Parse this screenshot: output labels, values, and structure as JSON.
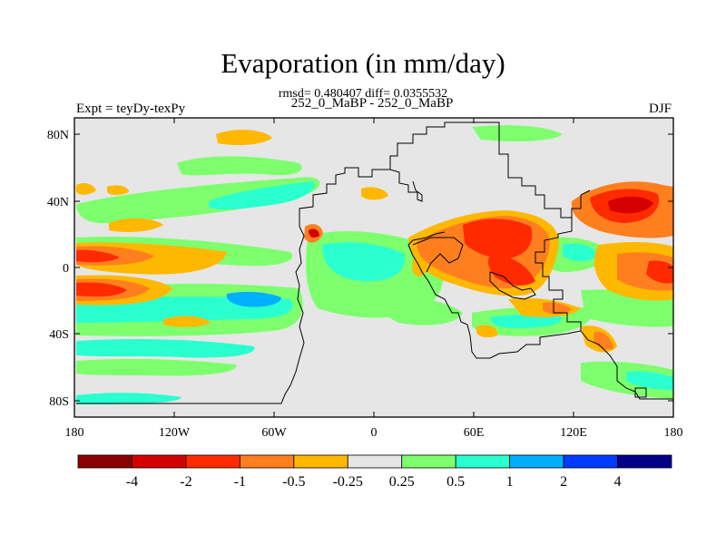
{
  "title": "Evaporation (in mm/day)",
  "stats_line": "rmsd= 0.480407 diff= 0.0355532",
  "subtitle": "252_0_MaBP - 252_0_MaBP",
  "left_label": "Expt = teyDy-texPy",
  "right_label": "DJF",
  "map": {
    "x_ticks": [
      "180",
      "120W",
      "60W",
      "0",
      "60E",
      "120E",
      "180"
    ],
    "y_ticks": [
      "80N",
      "40N",
      "0",
      "40S",
      "80S"
    ],
    "x_range": [
      -180,
      180
    ],
    "y_range": [
      -90,
      90
    ],
    "background_color": "#e6e6e6"
  },
  "colorbar": {
    "labels": [
      "-4",
      "-2",
      "-1",
      "-0.5",
      "-0.25",
      "0.25",
      "0.5",
      "1",
      "2",
      "4"
    ],
    "colors": [
      "#8b0000",
      "#d50000",
      "#ff2a00",
      "#ff7f1f",
      "#ffb800",
      "#e6e6e6",
      "#7dff6e",
      "#2affcf",
      "#00b0ff",
      "#003cff",
      "#00008b"
    ]
  }
}
